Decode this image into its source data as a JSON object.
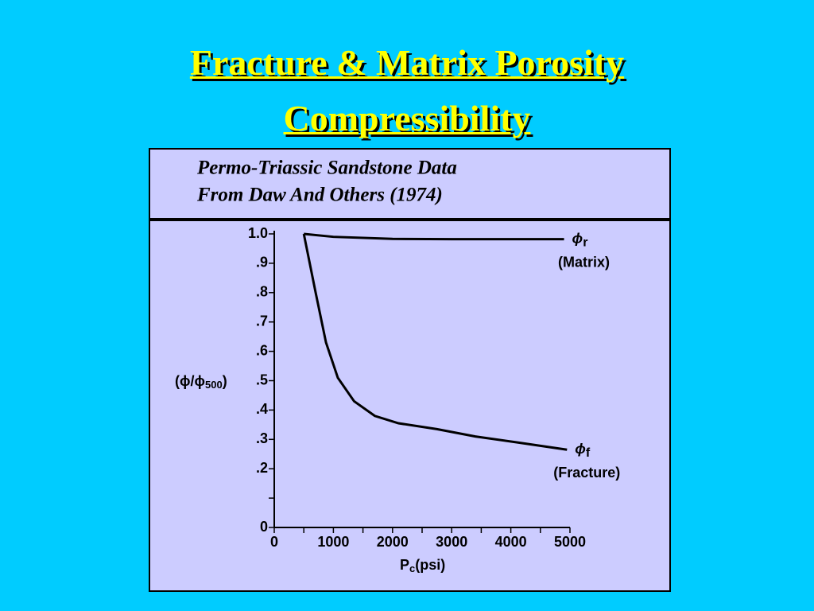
{
  "slide": {
    "title_lines": [
      "Fracture & Matrix Porosity",
      "Compressibility"
    ]
  },
  "chart_data": {
    "type": "line",
    "header_lines": [
      "Permo-Triassic Sandstone Data",
      "From Daw And Others (1974)"
    ],
    "ylabel_parts": [
      "(ϕ/ϕ",
      "500",
      ")"
    ],
    "xlabel_parts": [
      "P",
      "c",
      "(psi)"
    ],
    "xlim": [
      0,
      5000
    ],
    "xticks": [
      0,
      1000,
      2000,
      3000,
      4000,
      5000
    ],
    "minor_xticks": [
      500,
      1500,
      2500,
      3500,
      4500
    ],
    "ylim": [
      0,
      1.0
    ],
    "yticks": [
      {
        "value": 0,
        "label": "0"
      },
      {
        "value": 0.2,
        "label": ".2"
      },
      {
        "value": 0.3,
        "label": ".3"
      },
      {
        "value": 0.4,
        "label": ".4"
      },
      {
        "value": 0.5,
        "label": ".5"
      },
      {
        "value": 0.6,
        "label": ".6"
      },
      {
        "value": 0.7,
        "label": ".7"
      },
      {
        "value": 0.8,
        "label": ".8"
      },
      {
        "value": 0.9,
        "label": ".9"
      },
      {
        "value": 1.0,
        "label": "1.0"
      }
    ],
    "minor_yticks": [
      0.1
    ],
    "series": [
      {
        "name": "(Matrix)",
        "symbol": "ϕ",
        "symbol_sub": "r",
        "color": "#000000",
        "x": [
          500,
          1000,
          2000,
          3000,
          4000,
          4900
        ],
        "values": [
          1.0,
          0.99,
          0.983,
          0.982,
          0.982,
          0.982
        ]
      },
      {
        "name": "(Fracture)",
        "symbol": "ϕ",
        "symbol_sub": "f",
        "color": "#000000",
        "x": [
          500,
          700,
          875,
          1075,
          1350,
          1700,
          2100,
          2750,
          3400,
          4100,
          4950
        ],
        "values": [
          1.0,
          0.8,
          0.63,
          0.51,
          0.43,
          0.38,
          0.355,
          0.335,
          0.31,
          0.29,
          0.265
        ]
      }
    ]
  }
}
